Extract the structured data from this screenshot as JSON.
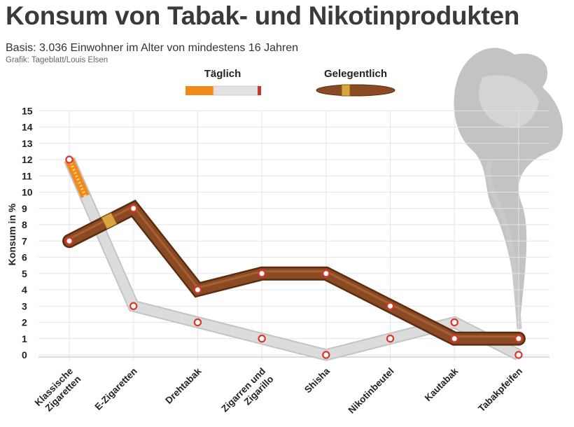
{
  "header": {
    "title": "Konsum von Tabak- und Nikotinprodukten",
    "subtitle": "Basis: 3.036 Einwohner im Alter von mindestens 16 Jahren",
    "credit": "Grafik: Tageblatt/Louis Elsen"
  },
  "colors": {
    "taeglich": "#dcdcdc",
    "gelegentlich": "#8a4a24",
    "filter": "#f08a1c",
    "marker_ring": "#d8372a",
    "grid": "#e4e4e4",
    "smoke": "#b9b9b9"
  },
  "chart_data": {
    "type": "line",
    "title": "Konsum von Tabak- und Nikotinprodukten",
    "xlabel": "",
    "ylabel": "Konsum in %",
    "ylim": [
      0,
      15
    ],
    "yticks": [
      0,
      1,
      2,
      3,
      4,
      5,
      6,
      7,
      8,
      9,
      10,
      11,
      12,
      13,
      14,
      15
    ],
    "grid": true,
    "legend_position": "top",
    "categories": [
      "Klassische Zigaretten",
      "E-Zigaretten",
      "Drehtabak",
      "Zigarren und Zigarillo",
      "Shisha",
      "Nikotinbeutel",
      "Kautabak",
      "Tabakpfeifen"
    ],
    "category_lines": [
      [
        "Klassische",
        "Zigaretten"
      ],
      [
        "E-Zigaretten"
      ],
      [
        "Drehtabak"
      ],
      [
        "Zigarren und",
        "Zigarillo"
      ],
      [
        "Shisha"
      ],
      [
        "Nikotinbeutel"
      ],
      [
        "Kautabak"
      ],
      [
        "Tabakpfeifen"
      ]
    ],
    "series": [
      {
        "name": "Täglich",
        "icon": "cigarette-icon",
        "values": [
          12,
          3,
          2,
          1,
          0,
          1,
          2,
          0
        ]
      },
      {
        "name": "Gelegentlich",
        "icon": "cigar-icon",
        "values": [
          7,
          9,
          4,
          5,
          5,
          3,
          1,
          1
        ]
      }
    ]
  }
}
